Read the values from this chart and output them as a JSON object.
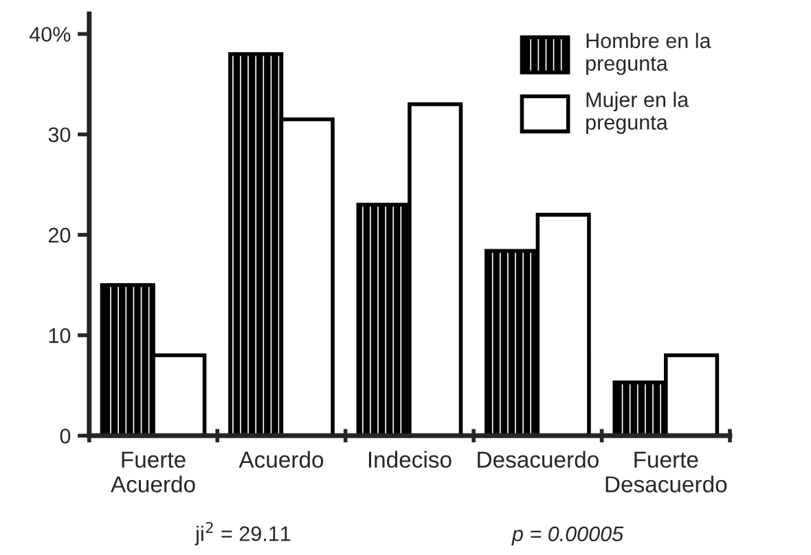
{
  "chart_data": {
    "type": "bar",
    "categories": [
      "Fuerte Acuerdo",
      "Acuerdo",
      "Indeciso",
      "Desacuerdo",
      "Fuerte Desacuerdo"
    ],
    "series": [
      {
        "name": "Hombre en la pregunta",
        "color": "#000000",
        "values": [
          15,
          38,
          23,
          18.4,
          5.3
        ]
      },
      {
        "name": "Mujer en la pregunta",
        "color": "#ffffff",
        "values": [
          8,
          31.5,
          33,
          22,
          8
        ]
      }
    ],
    "ylim": [
      0,
      42
    ],
    "yticks": [
      0,
      10,
      20,
      30,
      {
        "value": 40,
        "label": "40%"
      }
    ],
    "annotations": [
      "ji$^{2}$ = 29.11",
      "p = 0.00005"
    ],
    "legend": "top right",
    "grid": false
  }
}
